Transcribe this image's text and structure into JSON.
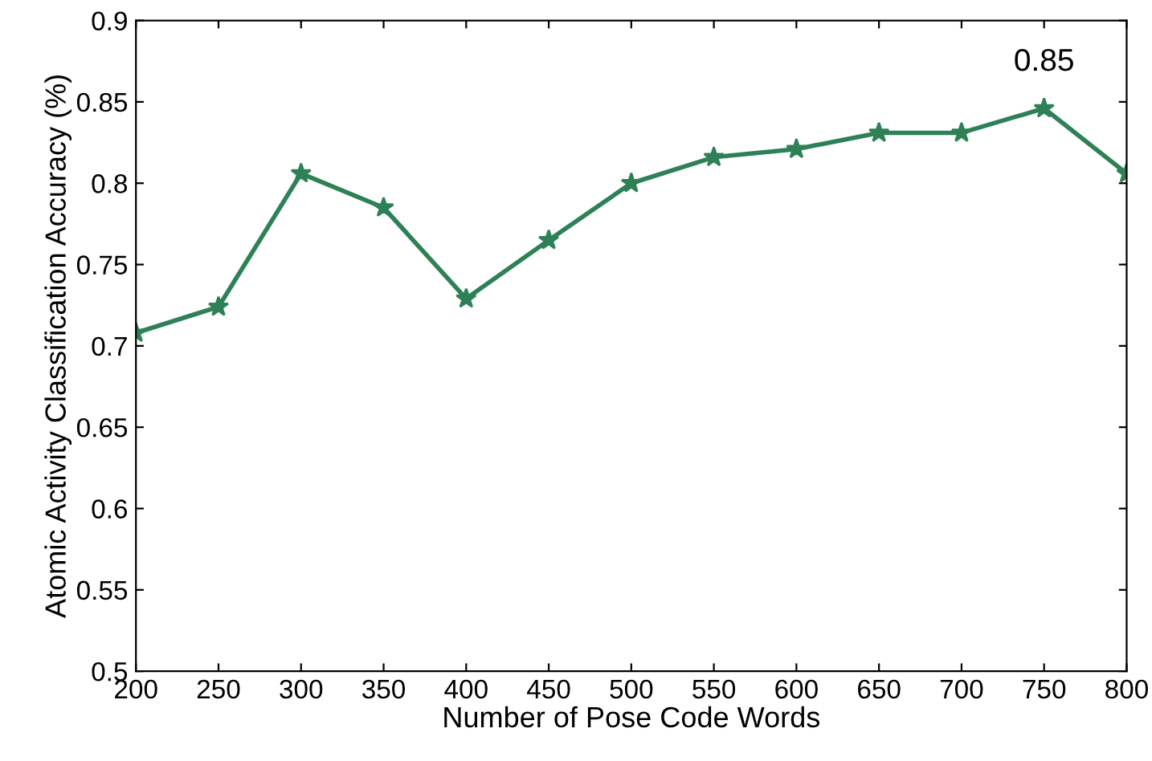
{
  "chart_data": {
    "type": "line",
    "xlabel": "Number of Pose Code Words",
    "ylabel": "Atomic Activity Classification Accuracy (%)",
    "x": [
      200,
      250,
      300,
      350,
      400,
      450,
      500,
      550,
      600,
      650,
      700,
      750,
      800
    ],
    "series": [
      {
        "color": "#2e8157",
        "values": [
          0.708,
          0.724,
          0.806,
          0.785,
          0.729,
          0.765,
          0.8,
          0.816,
          0.821,
          0.831,
          0.831,
          0.846,
          0.806
        ]
      }
    ],
    "xlim": [
      200,
      800
    ],
    "xticks": [
      200,
      250,
      300,
      350,
      400,
      450,
      500,
      550,
      600,
      650,
      700,
      750,
      800
    ],
    "ylim": [
      0.5,
      0.9
    ],
    "yticks": [
      0.5,
      0.55,
      0.6,
      0.65,
      0.7,
      0.75,
      0.8,
      0.85,
      0.9
    ],
    "annotations": [
      {
        "text": "0.85",
        "x": 750,
        "y": 0.846
      }
    ],
    "marker": "star",
    "line_style": "solid",
    "grid": false,
    "legend": false
  }
}
